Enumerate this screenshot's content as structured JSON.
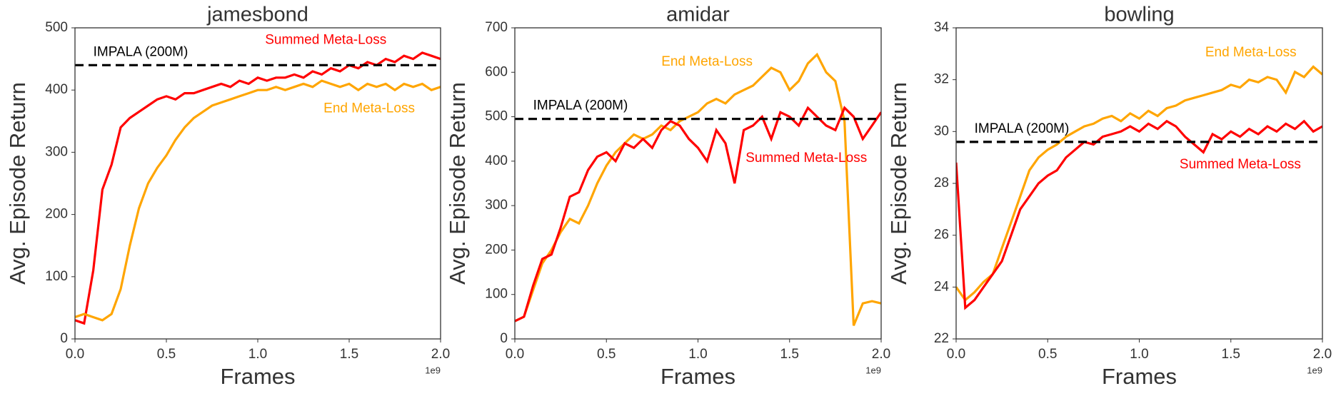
{
  "chart_data": [
    {
      "type": "line",
      "title": "jamesbond",
      "x_label": "Frames",
      "y_label": "Avg. Episode Return",
      "x_offset_label": "1e9",
      "x": [
        0,
        0.05,
        0.1,
        0.15,
        0.2,
        0.25,
        0.3,
        0.35,
        0.4,
        0.45,
        0.5,
        0.55,
        0.6,
        0.65,
        0.7,
        0.75,
        0.8,
        0.85,
        0.9,
        0.95,
        1.0,
        1.05,
        1.1,
        1.15,
        1.2,
        1.25,
        1.3,
        1.35,
        1.4,
        1.45,
        1.5,
        1.55,
        1.6,
        1.65,
        1.7,
        1.75,
        1.8,
        1.85,
        1.9,
        1.95,
        2.0
      ],
      "series": [
        {
          "name": "Summed Meta-Loss",
          "color": "#ff0000",
          "values": [
            30,
            25,
            110,
            240,
            280,
            340,
            355,
            365,
            375,
            385,
            390,
            385,
            395,
            395,
            400,
            405,
            410,
            405,
            415,
            410,
            420,
            415,
            420,
            420,
            425,
            420,
            430,
            425,
            435,
            430,
            440,
            435,
            445,
            440,
            450,
            445,
            455,
            450,
            460,
            455,
            450
          ]
        },
        {
          "name": "End Meta-Loss",
          "color": "#ffa500",
          "values": [
            35,
            40,
            35,
            30,
            40,
            80,
            150,
            210,
            250,
            275,
            295,
            320,
            340,
            355,
            365,
            375,
            380,
            385,
            390,
            395,
            400,
            400,
            405,
            400,
            405,
            410,
            405,
            415,
            410,
            405,
            410,
            400,
            410,
            405,
            410,
            400,
            410,
            405,
            410,
            400,
            405
          ]
        }
      ],
      "reference_line": {
        "label": "IMPALA (200M)",
        "value": 440
      },
      "xlim": [
        0,
        2.0
      ],
      "xticks": [
        {
          "value": 0,
          "label": "0.0"
        },
        0.5,
        {
          "value": 1,
          "label": "1.0"
        },
        1.5,
        {
          "value": 2,
          "label": "2.0"
        }
      ],
      "ylim": [
        0,
        500
      ],
      "yticks": [
        0,
        100,
        200,
        300,
        400,
        500
      ],
      "grid": false
    },
    {
      "type": "line",
      "title": "amidar",
      "x_label": "Frames",
      "y_label": "Avg. Episode Return",
      "x_offset_label": "1e9",
      "x": [
        0,
        0.05,
        0.1,
        0.15,
        0.2,
        0.25,
        0.3,
        0.35,
        0.4,
        0.45,
        0.5,
        0.55,
        0.6,
        0.65,
        0.7,
        0.75,
        0.8,
        0.85,
        0.9,
        0.95,
        1.0,
        1.05,
        1.1,
        1.15,
        1.2,
        1.25,
        1.3,
        1.35,
        1.4,
        1.45,
        1.5,
        1.55,
        1.6,
        1.65,
        1.7,
        1.75,
        1.8,
        1.85,
        1.9,
        1.95,
        2.0
      ],
      "series": [
        {
          "name": "End Meta-Loss",
          "color": "#ffa500",
          "values": [
            40,
            50,
            110,
            170,
            200,
            240,
            270,
            260,
            300,
            350,
            390,
            420,
            440,
            460,
            450,
            460,
            480,
            470,
            490,
            500,
            510,
            530,
            540,
            530,
            550,
            560,
            570,
            590,
            610,
            600,
            560,
            580,
            620,
            640,
            600,
            580,
            490,
            30,
            80,
            85,
            80
          ]
        },
        {
          "name": "Summed Meta-Loss",
          "color": "#ff0000",
          "values": [
            40,
            50,
            120,
            180,
            190,
            250,
            320,
            330,
            380,
            410,
            420,
            400,
            440,
            430,
            450,
            430,
            470,
            490,
            480,
            450,
            430,
            400,
            470,
            440,
            350,
            470,
            480,
            500,
            450,
            510,
            500,
            480,
            520,
            500,
            480,
            470,
            520,
            500,
            450,
            480,
            510
          ]
        }
      ],
      "reference_line": {
        "label": "IMPALA (200M)",
        "value": 495
      },
      "xlim": [
        0,
        2.0
      ],
      "xticks": [
        {
          "value": 0,
          "label": "0.0"
        },
        0.5,
        {
          "value": 1,
          "label": "1.0"
        },
        1.5,
        {
          "value": 2,
          "label": "2.0"
        }
      ],
      "ylim": [
        0,
        700
      ],
      "yticks": [
        0,
        100,
        200,
        300,
        400,
        500,
        600,
        700
      ],
      "grid": false
    },
    {
      "type": "line",
      "title": "bowling",
      "x_label": "Frames",
      "y_label": "Avg. Episode Return",
      "x_offset_label": "1e9",
      "x": [
        0,
        0.05,
        0.1,
        0.15,
        0.2,
        0.25,
        0.3,
        0.35,
        0.4,
        0.45,
        0.5,
        0.55,
        0.6,
        0.65,
        0.7,
        0.75,
        0.8,
        0.85,
        0.9,
        0.95,
        1.0,
        1.05,
        1.1,
        1.15,
        1.2,
        1.25,
        1.3,
        1.35,
        1.4,
        1.45,
        1.5,
        1.55,
        1.6,
        1.65,
        1.7,
        1.75,
        1.8,
        1.85,
        1.9,
        1.95,
        2.0
      ],
      "series": [
        {
          "name": "End Meta-Loss",
          "color": "#ffa500",
          "values": [
            24.0,
            23.5,
            23.8,
            24.2,
            24.5,
            25.5,
            26.5,
            27.5,
            28.5,
            29.0,
            29.3,
            29.5,
            29.8,
            30.0,
            30.2,
            30.3,
            30.5,
            30.6,
            30.4,
            30.7,
            30.5,
            30.8,
            30.6,
            30.9,
            31.0,
            31.2,
            31.3,
            31.4,
            31.5,
            31.6,
            31.8,
            31.7,
            32.0,
            31.9,
            32.1,
            32.0,
            31.5,
            32.3,
            32.1,
            32.5,
            32.2
          ]
        },
        {
          "name": "Summed Meta-Loss",
          "color": "#ff0000",
          "values": [
            28.8,
            23.2,
            23.5,
            24.0,
            24.5,
            25.0,
            26.0,
            27.0,
            27.5,
            28.0,
            28.3,
            28.5,
            29.0,
            29.3,
            29.6,
            29.5,
            29.8,
            29.9,
            30.0,
            30.2,
            30.0,
            30.3,
            30.1,
            30.4,
            30.2,
            29.8,
            29.5,
            29.2,
            29.9,
            29.7,
            30.0,
            29.8,
            30.1,
            29.9,
            30.2,
            30.0,
            30.3,
            30.1,
            30.4,
            30.0,
            30.2
          ]
        }
      ],
      "reference_line": {
        "label": "IMPALA (200M)",
        "value": 29.6
      },
      "xlim": [
        0,
        2.0
      ],
      "xticks": [
        {
          "value": 0,
          "label": "0.0"
        },
        0.5,
        {
          "value": 1,
          "label": "1.0"
        },
        1.5,
        {
          "value": 2,
          "label": "2.0"
        }
      ],
      "ylim": [
        22,
        34
      ],
      "yticks": [
        22,
        24,
        26,
        28,
        30,
        32,
        34
      ],
      "grid": false
    }
  ]
}
